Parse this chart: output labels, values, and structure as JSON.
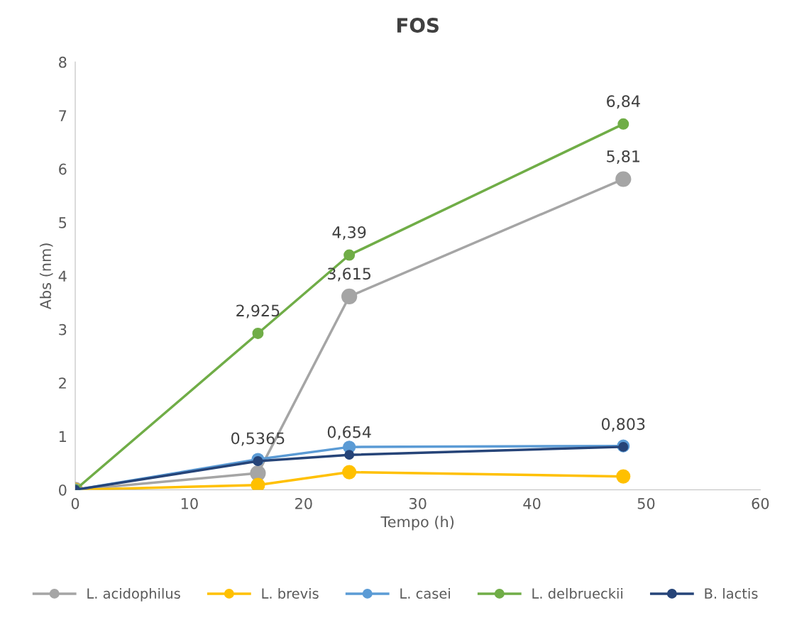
{
  "chart_data": {
    "type": "line",
    "title": "FOS",
    "xlabel": "Tempo (h)",
    "ylabel": "Abs (nm)",
    "x": [
      0,
      16,
      24,
      48
    ],
    "xlim": [
      0,
      60
    ],
    "xticks": [
      0,
      10,
      20,
      30,
      40,
      50,
      60
    ],
    "ylim": [
      0,
      8
    ],
    "yticks": [
      0,
      1,
      2,
      3,
      4,
      5,
      6,
      7,
      8
    ],
    "grid": false,
    "legend": "bottom",
    "marker": "circle",
    "line_style": "solid",
    "series": [
      {
        "name": "L. acidophilus",
        "color": "#a5a5a5",
        "values": [
          0,
          0.31,
          3.615,
          5.81
        ],
        "value_labels": [
          null,
          null,
          "3,615",
          "5,81"
        ]
      },
      {
        "name": "L. brevis",
        "color": "#ffc000",
        "values": [
          0,
          0.09,
          0.33,
          0.25
        ]
      },
      {
        "name": "L. casei",
        "color": "#5b9bd5",
        "values": [
          0,
          0.57,
          0.8,
          0.82
        ]
      },
      {
        "name": "L. delbrueckii",
        "color": "#70ad47",
        "values": [
          0,
          2.925,
          4.39,
          6.84
        ],
        "value_labels": [
          null,
          "2,925",
          "4,39",
          "6,84"
        ]
      },
      {
        "name": "B. lactis",
        "color": "#264478",
        "values": [
          0,
          0.5365,
          0.654,
          0.803
        ],
        "value_labels": [
          null,
          "0,5365",
          "0,654",
          "0,803"
        ]
      }
    ]
  }
}
